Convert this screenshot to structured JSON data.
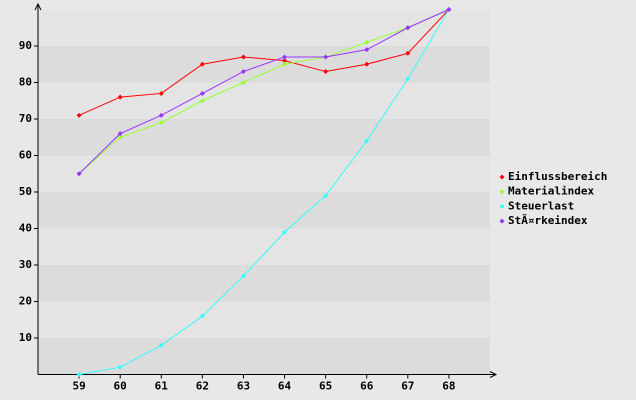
{
  "chart_data": {
    "type": "line",
    "x": [
      59,
      60,
      61,
      62,
      63,
      64,
      65,
      66,
      67,
      68
    ],
    "xlim": [
      58,
      69
    ],
    "ylim": [
      0,
      100
    ],
    "yticks": [
      10,
      20,
      30,
      40,
      50,
      60,
      70,
      80,
      90
    ],
    "grid": true,
    "legend": "right",
    "series": [
      {
        "name": "Einflussbereich",
        "color": "#ff0000",
        "values": [
          71,
          76,
          77,
          85,
          87,
          86,
          83,
          85,
          88,
          100
        ]
      },
      {
        "name": "Materialindex",
        "color": "#99ff33",
        "values": [
          55,
          65,
          69,
          75,
          80,
          85,
          87,
          91,
          95,
          100
        ]
      },
      {
        "name": "Steuerlast",
        "color": "#33ffff",
        "values": [
          0,
          2,
          8,
          16,
          27,
          39,
          49,
          64,
          81,
          100
        ]
      },
      {
        "name": "StÃ¤rkeindex",
        "color": "#9933ff",
        "values": [
          55,
          66,
          71,
          77,
          83,
          87,
          87,
          89,
          95,
          100
        ]
      }
    ]
  }
}
